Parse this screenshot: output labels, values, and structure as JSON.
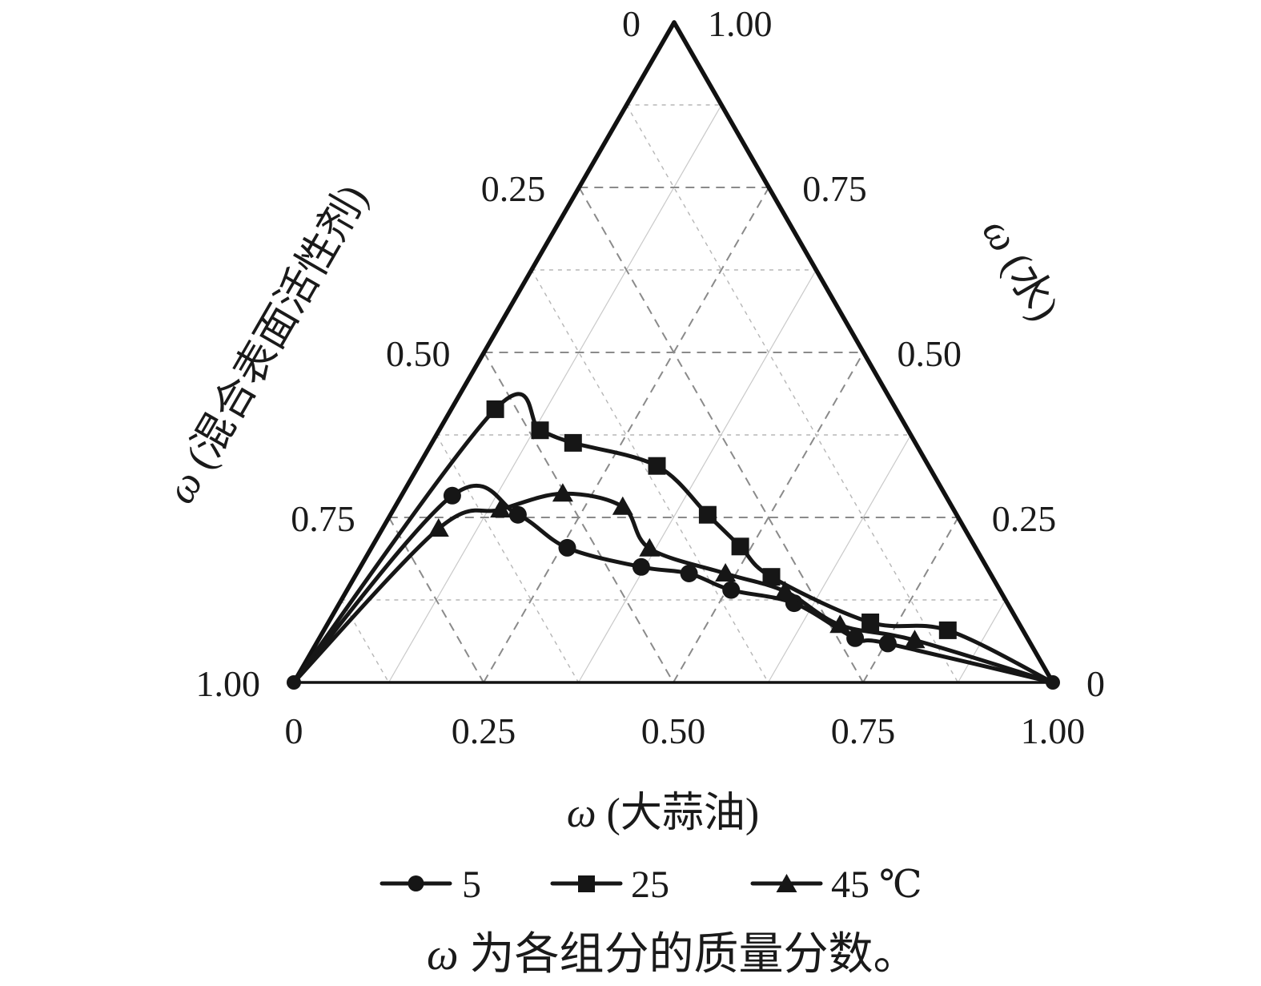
{
  "chart_data": {
    "type": "line",
    "subtype": "ternary-phase-diagram",
    "point_order": "[oil, surfactant, water] mass fractions, sum = 1",
    "grid": {
      "step": 0.125,
      "major_every": 0.25,
      "grid_on": true
    },
    "axes": {
      "left": {
        "label_symbol": "ω",
        "label_rest": " (混合表面活性剂)",
        "range": [
          0,
          1
        ],
        "ticks": [
          {
            "value": 0,
            "label": "0"
          },
          {
            "value": 0.25,
            "label": "0.25"
          },
          {
            "value": 0.5,
            "label": "0.50"
          },
          {
            "value": 0.75,
            "label": "0.75"
          },
          {
            "value": 1,
            "label": "1.00"
          }
        ]
      },
      "right": {
        "label_symbol": "ω",
        "label_rest": " (水)",
        "range": [
          0,
          1
        ],
        "ticks": [
          {
            "value": 1,
            "label": "1.00"
          },
          {
            "value": 0.75,
            "label": "0.75"
          },
          {
            "value": 0.5,
            "label": "0.50"
          },
          {
            "value": 0.25,
            "label": "0.25"
          },
          {
            "value": 0,
            "label": "0"
          }
        ]
      },
      "bottom": {
        "label_symbol": "ω",
        "label_rest": " (大蒜油)",
        "range": [
          0,
          1
        ],
        "ticks": [
          {
            "value": 0,
            "label": "0"
          },
          {
            "value": 0.25,
            "label": "0.25"
          },
          {
            "value": 0.5,
            "label": "0.50"
          },
          {
            "value": 0.75,
            "label": "0.75"
          },
          {
            "value": 1,
            "label": "1.00"
          }
        ]
      }
    },
    "series": [
      {
        "name": "5",
        "marker": "circle",
        "points": [
          [
            0,
            1,
            0
          ],
          [
            0.067,
            0.65,
            0.283
          ],
          [
            0.168,
            0.578,
            0.254
          ],
          [
            0.258,
            0.538,
            0.204
          ],
          [
            0.37,
            0.455,
            0.175
          ],
          [
            0.438,
            0.397,
            0.165
          ],
          [
            0.506,
            0.354,
            0.14
          ],
          [
            0.599,
            0.281,
            0.12
          ],
          [
            0.706,
            0.227,
            0.067
          ],
          [
            0.753,
            0.188,
            0.059
          ],
          [
            1,
            0,
            0
          ]
        ]
      },
      {
        "name": "25",
        "marker": "square",
        "points": [
          [
            0,
            1,
            0
          ],
          [
            0.058,
            0.528,
            0.414
          ],
          [
            0.133,
            0.485,
            0.382
          ],
          [
            0.186,
            0.451,
            0.363
          ],
          [
            0.314,
            0.358,
            0.328
          ],
          [
            0.418,
            0.328,
            0.254
          ],
          [
            0.485,
            0.309,
            0.206
          ],
          [
            0.549,
            0.291,
            0.16
          ],
          [
            0.714,
            0.195,
            0.091
          ],
          [
            0.822,
            0.099,
            0.079
          ],
          [
            1,
            0,
            0
          ]
        ]
      },
      {
        "name": "45 ℃",
        "marker": "triangle",
        "points": [
          [
            0,
            1,
            0
          ],
          [
            0.074,
            0.693,
            0.233
          ],
          [
            0.141,
            0.597,
            0.262
          ],
          [
            0.211,
            0.503,
            0.286
          ],
          [
            0.3,
            0.434,
            0.266
          ],
          [
            0.367,
            0.43,
            0.203
          ],
          [
            0.486,
            0.349,
            0.165
          ],
          [
            0.578,
            0.284,
            0.138
          ],
          [
            0.676,
            0.237,
            0.087
          ],
          [
            0.786,
            0.15,
            0.064
          ],
          [
            1,
            0,
            0
          ]
        ]
      }
    ],
    "legend": {
      "position": "below-chart",
      "items": [
        {
          "label": "5",
          "marker": "circle"
        },
        {
          "label": "25",
          "marker": "square"
        },
        {
          "label": "45 ℃",
          "marker": "triangle"
        }
      ]
    },
    "caption_symbol": "ω",
    "caption_rest": " 为各组分的质量分数。",
    "colors": {
      "line": "#161616",
      "frame": "#111111",
      "grid_major": "#8a8a8a",
      "grid_minor": "#b6b6b6",
      "grid_minor_solid": "#c9c9c9"
    }
  }
}
